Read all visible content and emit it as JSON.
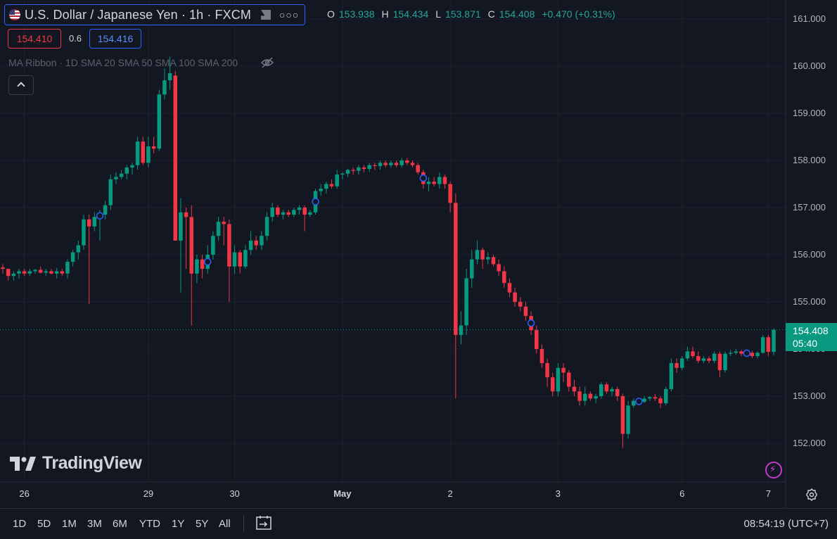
{
  "header": {
    "title": "U.S. Dollar / Japanese Yen · 1h · FXCM",
    "ohlc": {
      "o_label": "O",
      "o": "153.938",
      "h_label": "H",
      "h": "154.434",
      "l_label": "L",
      "l": "153.871",
      "c_label": "C",
      "c": "154.408",
      "change": "+0.470 (+0.31%)"
    },
    "sell_price": "154.410",
    "spread": "0.6",
    "buy_price": "154.416",
    "indicator": "MA Ribbon · 1D SMA 20 SMA 50 SMA 100 SMA 200"
  },
  "colors": {
    "up": "#089981",
    "down": "#f23645",
    "bg": "#131722",
    "grid": "#1e222d",
    "marker": "#2962ff"
  },
  "icons": [
    "us-flag-icon",
    "flag-icon",
    "more-icon",
    "eye-off-icon",
    "chevron-up-icon",
    "gear-icon",
    "bolt-icon",
    "date-range-icon"
  ],
  "chart_data": {
    "type": "candlestick",
    "symbol": "USDJPY",
    "interval": "1h",
    "ylim": [
      151.2,
      161.4
    ],
    "y_ticks": [
      "152.000",
      "153.000",
      "154.000",
      "155.000",
      "156.000",
      "157.000",
      "158.000",
      "159.000",
      "160.000",
      "161.000"
    ],
    "x_ticks": [
      {
        "label": "26",
        "bar": 4
      },
      {
        "label": "29",
        "bar": 27
      },
      {
        "label": "30",
        "bar": 43
      },
      {
        "label": "May",
        "bar": 63,
        "bold": true
      },
      {
        "label": "2",
        "bar": 83
      },
      {
        "label": "3",
        "bar": 103
      },
      {
        "label": "6",
        "bar": 126
      },
      {
        "label": "7",
        "bar": 142
      }
    ],
    "last_price": "154.408",
    "last_value": 154.408,
    "countdown": "05:40",
    "markers_at_bars": [
      18,
      38,
      58,
      78,
      98,
      118,
      138
    ],
    "candles": [
      [
        155.73,
        155.8,
        155.6,
        155.7
      ],
      [
        155.7,
        155.7,
        155.45,
        155.55
      ],
      [
        155.55,
        155.65,
        155.45,
        155.6
      ],
      [
        155.6,
        155.7,
        155.5,
        155.65
      ],
      [
        155.65,
        155.7,
        155.55,
        155.6
      ],
      [
        155.6,
        155.7,
        155.55,
        155.65
      ],
      [
        155.65,
        155.7,
        155.6,
        155.68
      ],
      [
        155.68,
        155.75,
        155.6,
        155.62
      ],
      [
        155.62,
        155.7,
        155.55,
        155.65
      ],
      [
        155.65,
        155.7,
        155.58,
        155.6
      ],
      [
        155.6,
        155.72,
        155.5,
        155.65
      ],
      [
        155.65,
        155.7,
        155.55,
        155.6
      ],
      [
        155.6,
        155.9,
        155.5,
        155.85
      ],
      [
        155.85,
        156.1,
        155.75,
        156.05
      ],
      [
        156.05,
        156.3,
        155.9,
        156.2
      ],
      [
        156.2,
        156.85,
        156.1,
        156.75
      ],
      [
        156.75,
        156.85,
        154.95,
        156.6
      ],
      [
        156.6,
        156.9,
        156.5,
        156.8
      ],
      [
        156.8,
        156.95,
        156.3,
        156.85
      ],
      [
        156.85,
        157.15,
        156.75,
        157.05
      ],
      [
        157.05,
        157.7,
        156.95,
        157.6
      ],
      [
        157.6,
        157.75,
        157.5,
        157.65
      ],
      [
        157.65,
        157.8,
        157.6,
        157.72
      ],
      [
        157.72,
        157.9,
        157.6,
        157.85
      ],
      [
        157.85,
        157.95,
        157.7,
        157.9
      ],
      [
        157.9,
        158.5,
        157.8,
        158.4
      ],
      [
        158.4,
        158.5,
        157.9,
        157.95
      ],
      [
        157.95,
        158.5,
        157.85,
        158.3
      ],
      [
        158.3,
        158.5,
        158.15,
        158.25
      ],
      [
        158.25,
        159.5,
        158.2,
        159.4
      ],
      [
        159.4,
        159.95,
        159.3,
        159.7
      ],
      [
        159.7,
        160.2,
        159.5,
        159.85
      ],
      [
        159.8,
        159.9,
        156.3,
        156.3
      ],
      [
        156.3,
        157.2,
        155.2,
        156.9
      ],
      [
        156.9,
        157.0,
        155.7,
        156.8
      ],
      [
        156.8,
        157.05,
        154.5,
        155.6
      ],
      [
        155.6,
        156.0,
        155.4,
        155.9
      ],
      [
        155.9,
        156.0,
        155.5,
        155.7
      ],
      [
        155.7,
        156.2,
        155.6,
        156.0
      ],
      [
        156.0,
        156.5,
        155.9,
        156.4
      ],
      [
        156.4,
        156.8,
        156.3,
        156.7
      ],
      [
        156.7,
        156.8,
        156.2,
        156.65
      ],
      [
        156.65,
        156.75,
        155.0,
        155.75
      ],
      [
        155.75,
        156.2,
        155.6,
        156.05
      ],
      [
        156.05,
        156.1,
        155.6,
        155.75
      ],
      [
        155.75,
        156.2,
        155.7,
        156.1
      ],
      [
        156.1,
        156.5,
        156.0,
        156.3
      ],
      [
        156.3,
        156.4,
        156.1,
        156.2
      ],
      [
        156.2,
        156.5,
        156.1,
        156.4
      ],
      [
        156.4,
        156.9,
        156.3,
        156.8
      ],
      [
        156.8,
        157.1,
        156.7,
        157.0
      ],
      [
        157.0,
        157.05,
        156.8,
        156.85
      ],
      [
        156.85,
        156.95,
        156.75,
        156.9
      ],
      [
        156.9,
        156.95,
        156.8,
        156.85
      ],
      [
        156.85,
        157.0,
        156.8,
        156.95
      ],
      [
        156.95,
        157.05,
        156.85,
        157.0
      ],
      [
        157.0,
        157.05,
        156.5,
        156.85
      ],
      [
        156.85,
        156.95,
        156.8,
        156.9
      ],
      [
        156.9,
        157.4,
        156.85,
        157.35
      ],
      [
        157.35,
        157.5,
        157.25,
        157.4
      ],
      [
        157.4,
        157.55,
        157.3,
        157.5
      ],
      [
        157.5,
        157.6,
        157.4,
        157.45
      ],
      [
        157.45,
        157.8,
        157.4,
        157.7
      ],
      [
        157.7,
        157.75,
        157.6,
        157.72
      ],
      [
        157.72,
        157.82,
        157.65,
        157.8
      ],
      [
        157.8,
        157.85,
        157.7,
        157.78
      ],
      [
        157.78,
        157.9,
        157.7,
        157.85
      ],
      [
        157.85,
        157.9,
        157.75,
        157.82
      ],
      [
        157.82,
        157.95,
        157.75,
        157.9
      ],
      [
        157.9,
        157.95,
        157.8,
        157.88
      ],
      [
        157.88,
        158.0,
        157.8,
        157.95
      ],
      [
        157.95,
        158.0,
        157.85,
        157.9
      ],
      [
        157.9,
        158.0,
        157.85,
        157.95
      ],
      [
        157.95,
        158.0,
        157.85,
        157.9
      ],
      [
        157.9,
        158.05,
        157.85,
        158.0
      ],
      [
        158.0,
        158.05,
        157.9,
        157.95
      ],
      [
        157.95,
        158.0,
        157.85,
        157.9
      ],
      [
        157.9,
        157.95,
        157.7,
        157.75
      ],
      [
        157.75,
        157.8,
        157.4,
        157.5
      ],
      [
        157.5,
        157.65,
        157.35,
        157.55
      ],
      [
        157.55,
        157.65,
        157.45,
        157.5
      ],
      [
        157.5,
        157.75,
        157.4,
        157.65
      ],
      [
        157.65,
        157.7,
        157.4,
        157.5
      ],
      [
        157.5,
        157.55,
        156.9,
        157.1
      ],
      [
        157.1,
        157.3,
        152.95,
        154.3
      ],
      [
        154.3,
        154.8,
        154.1,
        154.5
      ],
      [
        154.5,
        155.7,
        154.3,
        155.5
      ],
      [
        155.5,
        156.1,
        155.3,
        155.9
      ],
      [
        155.9,
        156.3,
        155.8,
        156.1
      ],
      [
        156.1,
        156.15,
        155.7,
        155.9
      ],
      [
        155.9,
        156.05,
        155.8,
        155.95
      ],
      [
        155.95,
        156.0,
        155.75,
        155.8
      ],
      [
        155.8,
        155.9,
        155.55,
        155.65
      ],
      [
        155.65,
        155.75,
        155.3,
        155.4
      ],
      [
        155.4,
        155.5,
        155.1,
        155.2
      ],
      [
        155.2,
        155.3,
        154.9,
        155.0
      ],
      [
        155.0,
        155.1,
        154.8,
        154.9
      ],
      [
        154.9,
        155.0,
        154.6,
        154.7
      ],
      [
        154.7,
        154.8,
        154.3,
        154.4
      ],
      [
        154.4,
        154.5,
        153.9,
        154.0
      ],
      [
        154.0,
        154.1,
        153.6,
        153.7
      ],
      [
        153.7,
        153.8,
        153.2,
        153.4
      ],
      [
        153.4,
        153.5,
        153.0,
        153.1
      ],
      [
        153.1,
        153.7,
        153.0,
        153.6
      ],
      [
        153.6,
        153.7,
        153.3,
        153.5
      ],
      [
        153.5,
        153.55,
        153.1,
        153.2
      ],
      [
        153.2,
        153.35,
        153.0,
        153.1
      ],
      [
        153.1,
        153.2,
        152.8,
        152.9
      ],
      [
        152.9,
        153.2,
        152.8,
        153.05
      ],
      [
        153.05,
        153.1,
        152.9,
        152.95
      ],
      [
        152.95,
        153.05,
        152.85,
        153.0
      ],
      [
        153.0,
        153.3,
        152.95,
        153.25
      ],
      [
        153.25,
        153.3,
        153.05,
        153.1
      ],
      [
        153.1,
        153.2,
        153.0,
        153.15
      ],
      [
        153.15,
        153.2,
        152.9,
        153.0
      ],
      [
        153.0,
        153.05,
        151.9,
        152.2
      ],
      [
        152.2,
        152.9,
        152.1,
        152.8
      ],
      [
        152.8,
        152.95,
        152.75,
        152.9
      ],
      [
        152.9,
        152.95,
        152.8,
        152.88
      ],
      [
        152.88,
        153.0,
        152.85,
        152.95
      ],
      [
        152.95,
        153.0,
        152.9,
        152.98
      ],
      [
        152.98,
        153.05,
        152.9,
        152.95
      ],
      [
        152.95,
        153.0,
        152.75,
        152.85
      ],
      [
        152.85,
        153.2,
        152.8,
        153.15
      ],
      [
        153.15,
        153.8,
        153.1,
        153.7
      ],
      [
        153.7,
        153.8,
        153.5,
        153.6
      ],
      [
        153.6,
        153.85,
        153.55,
        153.8
      ],
      [
        153.8,
        154.05,
        153.75,
        153.95
      ],
      [
        153.95,
        154.05,
        153.8,
        153.85
      ],
      [
        153.85,
        153.95,
        153.7,
        153.75
      ],
      [
        153.75,
        153.85,
        153.7,
        153.8
      ],
      [
        153.8,
        153.85,
        153.7,
        153.75
      ],
      [
        153.75,
        153.95,
        153.7,
        153.9
      ],
      [
        153.9,
        153.95,
        153.4,
        153.55
      ],
      [
        153.55,
        153.95,
        153.5,
        153.9
      ],
      [
        153.9,
        153.98,
        153.85,
        153.92
      ],
      [
        153.92,
        154.0,
        153.88,
        153.95
      ],
      [
        153.95,
        153.98,
        153.85,
        153.9
      ],
      [
        153.9,
        153.95,
        153.85,
        153.92
      ],
      [
        153.92,
        153.96,
        153.8,
        153.85
      ],
      [
        153.85,
        153.95,
        153.8,
        153.92
      ],
      [
        153.92,
        154.3,
        153.9,
        154.25
      ],
      [
        154.25,
        154.3,
        153.85,
        153.94
      ],
      [
        153.938,
        154.434,
        153.871,
        154.408
      ]
    ]
  },
  "axis": {
    "settings": "gear"
  },
  "logo": {
    "text": "TradingView"
  },
  "bottom": {
    "timeframes": [
      "1D",
      "5D",
      "1M",
      "3M",
      "6M",
      "YTD",
      "1Y",
      "5Y",
      "All"
    ],
    "clock": "08:54:19 (UTC+7)"
  }
}
